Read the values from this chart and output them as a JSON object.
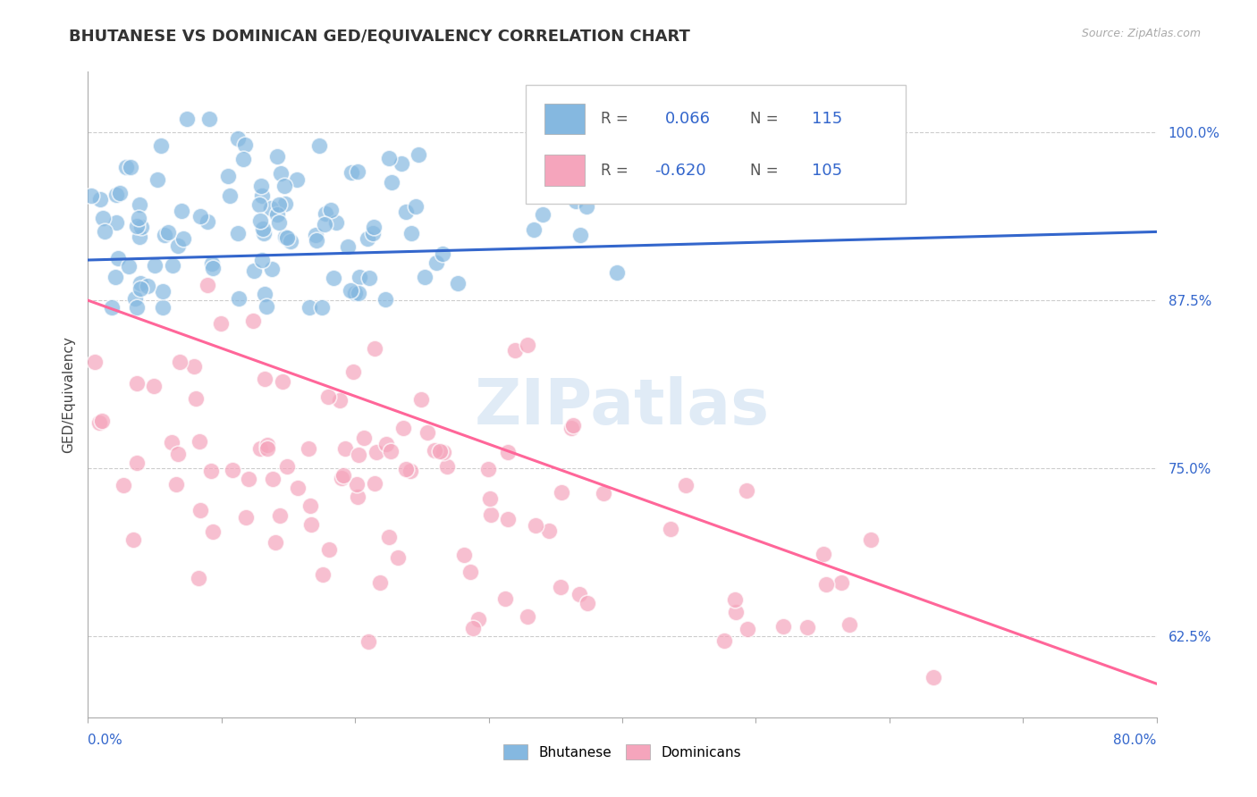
{
  "title": "BHUTANESE VS DOMINICAN GED/EQUIVALENCY CORRELATION CHART",
  "source": "Source: ZipAtlas.com",
  "ylabel": "GED/Equivalency",
  "ytick_vals": [
    0.625,
    0.75,
    0.875,
    1.0
  ],
  "ytick_labels": [
    "62.5%",
    "75.0%",
    "87.5%",
    "100.0%"
  ],
  "xlim": [
    0.0,
    0.8
  ],
  "ylim": [
    0.565,
    1.045
  ],
  "bhutanese_R": 0.066,
  "bhutanese_N": 115,
  "dominican_R": -0.62,
  "dominican_N": 105,
  "bhutanese_color": "#85B8E0",
  "dominican_color": "#F5A5BC",
  "bhutanese_line_color": "#3366CC",
  "dominican_line_color": "#FF6699",
  "background_color": "#FFFFFF",
  "grid_color": "#CCCCCC",
  "title_fontsize": 13,
  "axis_label_fontsize": 11,
  "tick_fontsize": 11,
  "legend_fontsize": 11,
  "blue_line_x0": 0.0,
  "blue_line_y0": 0.905,
  "blue_line_x1": 0.8,
  "blue_line_y1": 0.926,
  "pink_line_x0": 0.0,
  "pink_line_y0": 0.875,
  "pink_line_x1": 0.8,
  "pink_line_y1": 0.59
}
